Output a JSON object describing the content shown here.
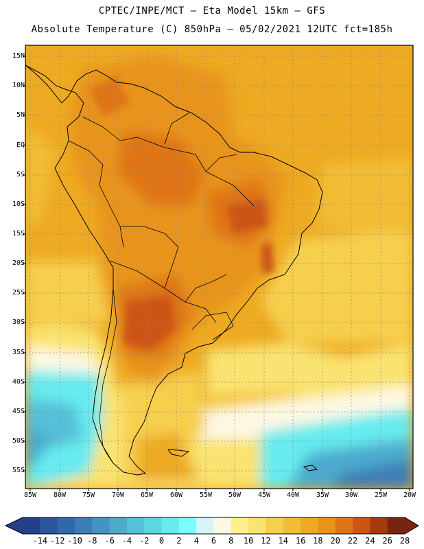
{
  "header": {
    "title_line1": "CPTEC/INPE/MCT –  Eta Model 15km – GFS",
    "title_line2": "Absolute Temperature (C) 850hPa – 05/02/2021 12UTC fct=185h"
  },
  "axes": {
    "lat_labels": [
      "15N",
      "10N",
      "5N",
      "EQ",
      "5S",
      "10S",
      "15S",
      "20S",
      "25S",
      "30S",
      "35S",
      "40S",
      "45S",
      "50S",
      "55S"
    ],
    "lon_labels": [
      "85W",
      "80W",
      "75W",
      "70W",
      "65W",
      "60W",
      "55W",
      "50W",
      "45W",
      "40W",
      "35W",
      "30W",
      "25W",
      "20W"
    ]
  },
  "colorbar": {
    "labels": [
      "-14",
      "-12",
      "-10",
      "-8",
      "-6",
      "-4",
      "-2",
      "0",
      "2",
      "4",
      "6",
      "8",
      "10",
      "12",
      "14",
      "16",
      "18",
      "20",
      "22",
      "24",
      "26",
      "28"
    ],
    "colors": [
      "#243f8c",
      "#2b559e",
      "#3268ab",
      "#3a7db8",
      "#4393c4",
      "#4caacd",
      "#55c0d8",
      "#5dd6e3",
      "#66ebef",
      "#7dfbfb",
      "#d6f4fb",
      "#fdf8e3",
      "#fdf08c",
      "#fae36f",
      "#f6cf4e",
      "#f2bd34",
      "#eeaa22",
      "#e8941b",
      "#df7518",
      "#cc5512",
      "#a33a10",
      "#7a2410"
    ]
  },
  "colors": {
    "warm": "#eeaa22",
    "hot": "#df7518",
    "hottest": "#cc5512",
    "mild": "#f6cf4e",
    "pale": "#fae36f",
    "cream": "#fdf8e3",
    "cool": "#66ebef",
    "cold": "#4caacd",
    "colder": "#3a7db8"
  }
}
